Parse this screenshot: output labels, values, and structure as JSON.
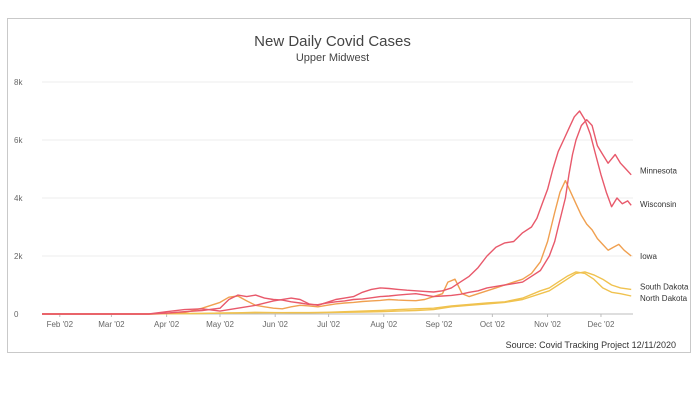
{
  "chart_data": {
    "type": "line",
    "title": "New Daily Covid Cases",
    "subtitle": "Upper Midwest",
    "source": "Source: Covid Tracking Project   12/11/2020",
    "xlabel": "",
    "ylabel": "",
    "ylim": [
      0,
      8000
    ],
    "y_ticks": [
      {
        "value": 0,
        "label": "0"
      },
      {
        "value": 2000,
        "label": "2k"
      },
      {
        "value": 4000,
        "label": "4k"
      },
      {
        "value": 6000,
        "label": "6k"
      },
      {
        "value": 8000,
        "label": "8k"
      }
    ],
    "x_range": [
      0,
      332
    ],
    "x_ticks": [
      {
        "value": 10,
        "label": "Feb '02"
      },
      {
        "value": 39,
        "label": "Mar '02"
      },
      {
        "value": 70,
        "label": "Apr '02"
      },
      {
        "value": 100,
        "label": "May '02"
      },
      {
        "value": 131,
        "label": "Jun '02"
      },
      {
        "value": 161,
        "label": "Jul '02"
      },
      {
        "value": 192,
        "label": "Aug '02"
      },
      {
        "value": 223,
        "label": "Sep '02"
      },
      {
        "value": 253,
        "label": "Oct '02"
      },
      {
        "value": 284,
        "label": "Nov '02"
      },
      {
        "value": 314,
        "label": "Dec '02"
      }
    ],
    "grid": true,
    "series": [
      {
        "name": "Minnesota",
        "color": "#e8596b",
        "points": [
          [
            0,
            0
          ],
          [
            60,
            0
          ],
          [
            70,
            30
          ],
          [
            80,
            80
          ],
          [
            90,
            120
          ],
          [
            100,
            200
          ],
          [
            105,
            500
          ],
          [
            110,
            650
          ],
          [
            115,
            600
          ],
          [
            120,
            650
          ],
          [
            125,
            550
          ],
          [
            130,
            500
          ],
          [
            135,
            480
          ],
          [
            140,
            420
          ],
          [
            145,
            380
          ],
          [
            150,
            330
          ],
          [
            155,
            320
          ],
          [
            160,
            380
          ],
          [
            165,
            420
          ],
          [
            170,
            450
          ],
          [
            175,
            500
          ],
          [
            180,
            520
          ],
          [
            185,
            560
          ],
          [
            190,
            600
          ],
          [
            195,
            620
          ],
          [
            200,
            650
          ],
          [
            205,
            680
          ],
          [
            210,
            700
          ],
          [
            215,
            650
          ],
          [
            220,
            600
          ],
          [
            225,
            620
          ],
          [
            230,
            640
          ],
          [
            235,
            680
          ],
          [
            240,
            750
          ],
          [
            245,
            800
          ],
          [
            250,
            900
          ],
          [
            255,
            950
          ],
          [
            260,
            1000
          ],
          [
            265,
            1050
          ],
          [
            270,
            1100
          ],
          [
            275,
            1300
          ],
          [
            280,
            1500
          ],
          [
            285,
            2000
          ],
          [
            288,
            2500
          ],
          [
            290,
            3000
          ],
          [
            292,
            3500
          ],
          [
            294,
            4000
          ],
          [
            296,
            4800
          ],
          [
            298,
            5500
          ],
          [
            300,
            6000
          ],
          [
            303,
            6500
          ],
          [
            306,
            6700
          ],
          [
            309,
            6500
          ],
          [
            312,
            5800
          ],
          [
            315,
            5500
          ],
          [
            318,
            5200
          ],
          [
            322,
            5500
          ],
          [
            325,
            5200
          ],
          [
            328,
            5000
          ],
          [
            331,
            4800
          ]
        ]
      },
      {
        "name": "Wisconsin",
        "color": "#e8596b",
        "points": [
          [
            0,
            0
          ],
          [
            60,
            0
          ],
          [
            70,
            80
          ],
          [
            80,
            150
          ],
          [
            90,
            180
          ],
          [
            100,
            100
          ],
          [
            110,
            200
          ],
          [
            120,
            300
          ],
          [
            130,
            450
          ],
          [
            140,
            550
          ],
          [
            145,
            500
          ],
          [
            150,
            350
          ],
          [
            155,
            300
          ],
          [
            160,
            400
          ],
          [
            165,
            500
          ],
          [
            170,
            550
          ],
          [
            175,
            600
          ],
          [
            180,
            750
          ],
          [
            185,
            850
          ],
          [
            190,
            900
          ],
          [
            195,
            880
          ],
          [
            200,
            850
          ],
          [
            205,
            820
          ],
          [
            210,
            800
          ],
          [
            215,
            780
          ],
          [
            220,
            760
          ],
          [
            225,
            800
          ],
          [
            230,
            900
          ],
          [
            235,
            1100
          ],
          [
            240,
            1300
          ],
          [
            245,
            1600
          ],
          [
            250,
            2000
          ],
          [
            255,
            2300
          ],
          [
            260,
            2450
          ],
          [
            265,
            2500
          ],
          [
            270,
            2800
          ],
          [
            275,
            3000
          ],
          [
            278,
            3300
          ],
          [
            281,
            3800
          ],
          [
            284,
            4300
          ],
          [
            287,
            5000
          ],
          [
            290,
            5600
          ],
          [
            293,
            6000
          ],
          [
            296,
            6400
          ],
          [
            299,
            6800
          ],
          [
            302,
            7000
          ],
          [
            305,
            6700
          ],
          [
            308,
            6200
          ],
          [
            311,
            5500
          ],
          [
            314,
            4800
          ],
          [
            317,
            4200
          ],
          [
            320,
            3700
          ],
          [
            323,
            4000
          ],
          [
            326,
            3800
          ],
          [
            329,
            3900
          ],
          [
            331,
            3750
          ]
        ]
      },
      {
        "name": "Iowa",
        "color": "#f0a050",
        "points": [
          [
            0,
            0
          ],
          [
            60,
            0
          ],
          [
            70,
            20
          ],
          [
            80,
            50
          ],
          [
            90,
            200
          ],
          [
            100,
            400
          ],
          [
            105,
            580
          ],
          [
            110,
            620
          ],
          [
            115,
            450
          ],
          [
            120,
            300
          ],
          [
            125,
            250
          ],
          [
            130,
            200
          ],
          [
            135,
            180
          ],
          [
            140,
            250
          ],
          [
            145,
            300
          ],
          [
            150,
            280
          ],
          [
            155,
            250
          ],
          [
            160,
            300
          ],
          [
            165,
            350
          ],
          [
            170,
            380
          ],
          [
            175,
            400
          ],
          [
            180,
            430
          ],
          [
            185,
            450
          ],
          [
            190,
            470
          ],
          [
            195,
            500
          ],
          [
            200,
            480
          ],
          [
            205,
            470
          ],
          [
            210,
            460
          ],
          [
            215,
            500
          ],
          [
            220,
            600
          ],
          [
            225,
            700
          ],
          [
            228,
            1100
          ],
          [
            232,
            1200
          ],
          [
            236,
            700
          ],
          [
            240,
            600
          ],
          [
            245,
            700
          ],
          [
            250,
            800
          ],
          [
            255,
            900
          ],
          [
            260,
            1000
          ],
          [
            265,
            1100
          ],
          [
            270,
            1200
          ],
          [
            275,
            1400
          ],
          [
            280,
            1800
          ],
          [
            284,
            2500
          ],
          [
            288,
            3500
          ],
          [
            291,
            4200
          ],
          [
            294,
            4600
          ],
          [
            297,
            4200
          ],
          [
            300,
            3800
          ],
          [
            303,
            3400
          ],
          [
            306,
            3100
          ],
          [
            309,
            2900
          ],
          [
            312,
            2600
          ],
          [
            315,
            2400
          ],
          [
            318,
            2200
          ],
          [
            321,
            2300
          ],
          [
            324,
            2400
          ],
          [
            327,
            2200
          ],
          [
            331,
            2000
          ]
        ]
      },
      {
        "name": "South Dakota",
        "color": "#f0c24f",
        "points": [
          [
            0,
            0
          ],
          [
            60,
            0
          ],
          [
            70,
            10
          ],
          [
            80,
            15
          ],
          [
            90,
            20
          ],
          [
            100,
            30
          ],
          [
            110,
            40
          ],
          [
            120,
            60
          ],
          [
            130,
            50
          ],
          [
            140,
            40
          ],
          [
            150,
            40
          ],
          [
            160,
            50
          ],
          [
            170,
            60
          ],
          [
            180,
            70
          ],
          [
            190,
            80
          ],
          [
            200,
            100
          ],
          [
            210,
            120
          ],
          [
            220,
            150
          ],
          [
            230,
            250
          ],
          [
            240,
            300
          ],
          [
            250,
            350
          ],
          [
            260,
            400
          ],
          [
            270,
            500
          ],
          [
            280,
            700
          ],
          [
            285,
            800
          ],
          [
            290,
            1000
          ],
          [
            295,
            1200
          ],
          [
            300,
            1400
          ],
          [
            305,
            1450
          ],
          [
            310,
            1350
          ],
          [
            315,
            1200
          ],
          [
            320,
            1000
          ],
          [
            325,
            900
          ],
          [
            331,
            850
          ]
        ]
      },
      {
        "name": "North Dakota",
        "color": "#f0c24f",
        "points": [
          [
            0,
            0
          ],
          [
            60,
            0
          ],
          [
            70,
            10
          ],
          [
            80,
            15
          ],
          [
            90,
            20
          ],
          [
            100,
            30
          ],
          [
            110,
            35
          ],
          [
            120,
            40
          ],
          [
            130,
            45
          ],
          [
            140,
            50
          ],
          [
            150,
            50
          ],
          [
            160,
            60
          ],
          [
            170,
            80
          ],
          [
            180,
            100
          ],
          [
            190,
            120
          ],
          [
            200,
            150
          ],
          [
            210,
            180
          ],
          [
            220,
            200
          ],
          [
            230,
            280
          ],
          [
            240,
            330
          ],
          [
            250,
            380
          ],
          [
            260,
            420
          ],
          [
            270,
            550
          ],
          [
            280,
            800
          ],
          [
            285,
            900
          ],
          [
            290,
            1100
          ],
          [
            295,
            1300
          ],
          [
            300,
            1450
          ],
          [
            305,
            1400
          ],
          [
            310,
            1200
          ],
          [
            315,
            900
          ],
          [
            320,
            750
          ],
          [
            325,
            700
          ],
          [
            331,
            620
          ]
        ]
      }
    ],
    "end_labels": [
      {
        "name": "Minnesota",
        "value": 4950
      },
      {
        "name": "Wisconsin",
        "value": 3800
      },
      {
        "name": "Iowa",
        "value": 2000
      },
      {
        "name": "South Dakota",
        "value": 950
      },
      {
        "name": "North Dakota",
        "value": 550
      }
    ]
  }
}
